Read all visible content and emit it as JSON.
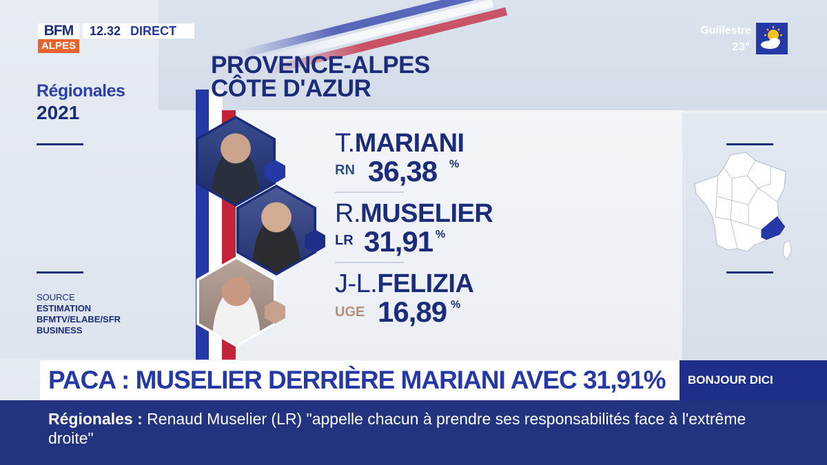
{
  "channel": {
    "logo_top": "BFM",
    "logo_bottom": "ALPES",
    "time": "12.32",
    "live_label": "DIRECT",
    "weather_city": "Guillestre",
    "weather_temp": "23°",
    "weather_icon": "sun-cloud-icon",
    "program": "BONJOUR DICI"
  },
  "side": {
    "election_label": "Régionales",
    "election_year": "2021",
    "source_title": "SOURCE",
    "source_lines": [
      "ESTIMATION",
      "BFMTV/ELABE/SFR",
      "BUSINESS"
    ]
  },
  "region": {
    "line1": "PROVENCE-ALPES",
    "line2": "CÔTE D'AZUR"
  },
  "candidates": [
    {
      "first": "T.",
      "last": "MARIANI",
      "party": "RN",
      "party_color": "#2d4f8c",
      "score": "36,38",
      "pct_symbol": "%"
    },
    {
      "first": "R.",
      "last": "MUSELIER",
      "party": "LR",
      "party_color": "#1a2c7a",
      "score": "31,91",
      "pct_symbol": "%"
    },
    {
      "first": "J-L.",
      "last": "FELIZIA",
      "party": "UGE",
      "party_color": "#b58f7e",
      "score": "16,89",
      "pct_symbol": "%"
    }
  ],
  "headline": "PACA : MUSELIER DERRIÈRE MARIANI AVEC 31,91%",
  "ticker": {
    "label": "Régionales",
    "separator": ":",
    "text": "Renaud Muselier (LR) \"appelle chacun à prendre ses responsabilités face à l'extrême droite\""
  },
  "colors": {
    "navy": "#1a2c7a",
    "blue": "#2438a6",
    "red": "#c4243a",
    "highlight_region": "#2438a6"
  }
}
